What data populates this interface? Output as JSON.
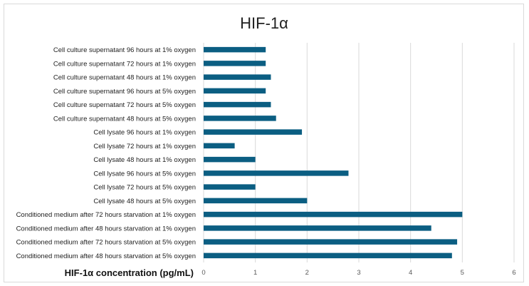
{
  "chart_data": {
    "type": "bar",
    "orientation": "horizontal",
    "title": "HIF-1α",
    "xlabel": "HIF-1α concentration (pg/mL)",
    "ylabel": "",
    "xlim": [
      0,
      6
    ],
    "xticks": [
      0,
      1,
      2,
      3,
      4,
      5,
      6
    ],
    "grid": true,
    "legend": "none",
    "bar_color": "#0b5e82",
    "categories": [
      "Cell culture supernatant 96 hours  at 1% oxygen",
      "Cell culture supernatant 72 hours  at 1% oxygen",
      "Cell culture supernatant 48 hours  at 1% oxygen",
      "Cell culture supernatant 96 hours  at 5% oxygen",
      "Cell culture supernatant 72 hours  at 5% oxygen",
      "Cell culture supernatant 48 hours  at 5% oxygen",
      "Cell lysate 96 hours  at 1% oxygen",
      "Cell lysate 72 hours  at 1% oxygen",
      "Cell lysate 48 hours  at 1% oxygen",
      "Cell lysate 96 hours  at 5% oxygen",
      "Cell lysate 72 hours  at 5% oxygen",
      "Cell lysate 48 hours  at 5% oxygen",
      "Conditioned medium after 72 hours starvation  at 1% oxygen",
      "Conditioned medium after  48 hours starvation  at 1% oxygen",
      "Conditioned medium after  72 hours starvation   at 5% oxygen",
      "Conditioned medium after  48 hours starvation  at 5% oxygen"
    ],
    "values": [
      1.2,
      1.2,
      1.3,
      1.2,
      1.3,
      1.4,
      1.9,
      0.6,
      1.0,
      2.8,
      1.0,
      2.0,
      5.0,
      4.4,
      4.9,
      4.8
    ]
  }
}
